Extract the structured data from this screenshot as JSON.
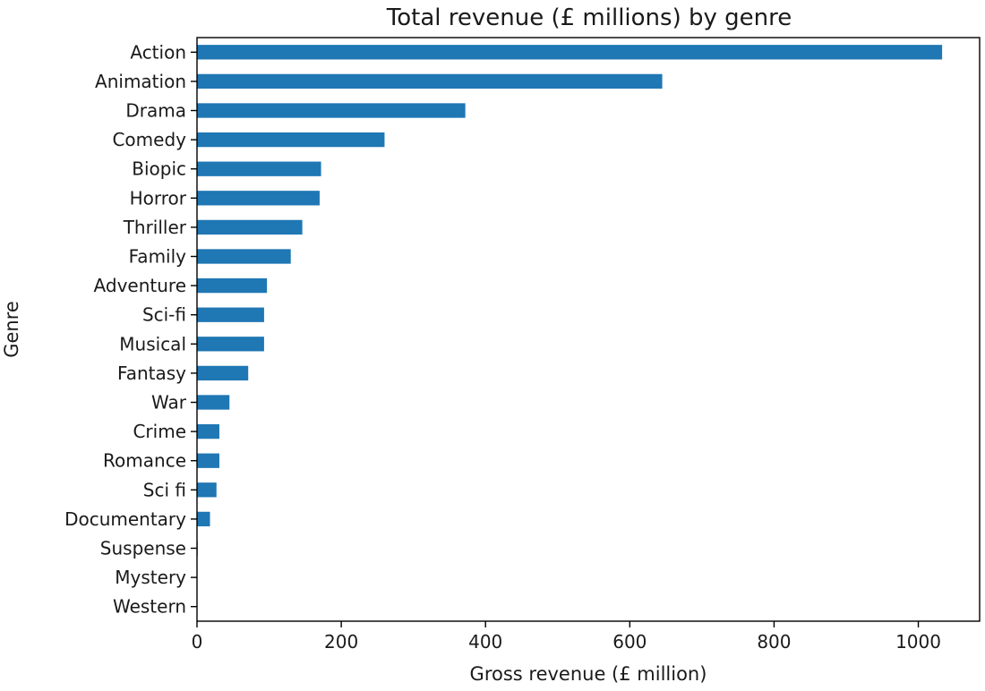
{
  "chart_data": {
    "type": "bar",
    "orientation": "horizontal",
    "title": "Total revenue (£ millions) by genre",
    "xlabel": "Gross revenue (£ million)",
    "ylabel": "Genre",
    "xlim": [
      0,
      1085
    ],
    "xticks": [
      0,
      200,
      400,
      600,
      800,
      1000
    ],
    "grid": false,
    "bar_color": "#1f77b4",
    "categories": [
      "Action",
      "Animation",
      "Drama",
      "Comedy",
      "Biopic",
      "Horror",
      "Thriller",
      "Family",
      "Adventure",
      "Sci-fi",
      "Musical",
      "Fantasy",
      "War",
      "Crime",
      "Romance",
      "Sci fi",
      "Documentary",
      "Suspense",
      "Mystery",
      "Western"
    ],
    "values": [
      1033,
      645,
      372,
      260,
      172,
      170,
      146,
      130,
      97,
      93,
      93,
      71,
      45,
      31,
      31,
      27,
      18,
      1,
      0,
      0
    ]
  }
}
